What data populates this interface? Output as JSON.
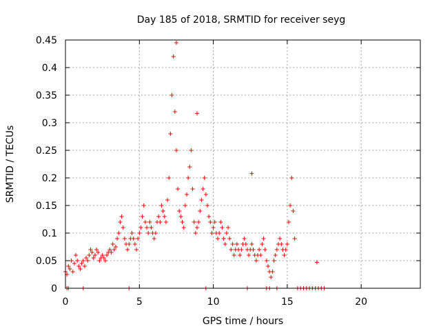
{
  "chart_data": {
    "type": "scatter",
    "title": "Day 185 of 2018, SRMTID for receiver seyg",
    "xlabel": "GPS time / hours",
    "ylabel": "SRMTID / TECUs",
    "xlim": [
      0,
      24
    ],
    "ylim": [
      0,
      0.45
    ],
    "xticks": [
      0,
      5,
      10,
      15,
      20
    ],
    "xtick_labels": [
      "0",
      "5",
      "10",
      "15",
      "20"
    ],
    "yticks": [
      0,
      0.05,
      0.1,
      0.15,
      0.2,
      0.25,
      0.3,
      0.35,
      0.4,
      0.45
    ],
    "ytick_labels": [
      "0",
      "0.05",
      "0.1",
      "0.15",
      "0.2",
      "0.25",
      "0.3",
      "0.35",
      "0.4",
      "0.45"
    ],
    "grid": true,
    "marker": "+",
    "color": "#ff0000",
    "series": [
      {
        "name": "SRMTID",
        "x": [
          0.0,
          0.1,
          0.2,
          0.3,
          0.4,
          0.5,
          0.6,
          0.7,
          0.8,
          0.9,
          1.0,
          1.1,
          1.2,
          1.3,
          1.4,
          1.5,
          1.6,
          1.7,
          1.8,
          1.9,
          2.0,
          2.1,
          2.2,
          2.3,
          2.4,
          2.5,
          2.6,
          2.7,
          2.8,
          2.9,
          3.0,
          3.1,
          3.2,
          3.3,
          3.4,
          3.5,
          3.6,
          3.7,
          3.8,
          3.9,
          4.0,
          4.1,
          4.2,
          4.3,
          4.4,
          4.5,
          4.6,
          4.7,
          4.8,
          4.9,
          5.0,
          5.1,
          5.2,
          5.3,
          5.4,
          5.5,
          5.6,
          5.7,
          5.8,
          5.9,
          6.0,
          6.1,
          6.2,
          6.3,
          6.4,
          6.5,
          6.6,
          6.7,
          6.8,
          6.9,
          7.0,
          7.1,
          7.2,
          7.3,
          7.4,
          7.5,
          7.6,
          7.7,
          7.8,
          7.9,
          8.0,
          8.1,
          8.2,
          8.3,
          8.4,
          8.5,
          8.6,
          8.7,
          8.8,
          8.9,
          9.0,
          9.1,
          9.2,
          9.3,
          9.4,
          9.5,
          9.6,
          9.7,
          9.8,
          9.9,
          10.0,
          10.1,
          10.2,
          10.3,
          10.4,
          10.5,
          10.6,
          10.7,
          10.8,
          10.9,
          11.0,
          11.1,
          11.2,
          11.3,
          11.4,
          11.5,
          11.6,
          11.7,
          11.8,
          11.9,
          12.0,
          12.1,
          12.2,
          12.3,
          12.4,
          12.5,
          12.6,
          12.7,
          12.8,
          12.9,
          13.0,
          13.1,
          13.2,
          13.3,
          13.4,
          13.5,
          13.6,
          13.7,
          13.8,
          13.9,
          14.0,
          14.1,
          14.2,
          14.3,
          14.4,
          14.5,
          14.6,
          14.7,
          14.8,
          14.9,
          15.0,
          15.1,
          15.2,
          15.3,
          15.4,
          15.5
        ],
        "y": [
          0.03,
          0.025,
          0.04,
          0.035,
          0.05,
          0.03,
          0.045,
          0.06,
          0.05,
          0.04,
          0.035,
          0.045,
          0.05,
          0.04,
          0.055,
          0.05,
          0.06,
          0.07,
          0.065,
          0.055,
          0.06,
          0.07,
          0.065,
          0.05,
          0.055,
          0.06,
          0.055,
          0.05,
          0.06,
          0.065,
          0.07,
          0.065,
          0.08,
          0.07,
          0.075,
          0.09,
          0.1,
          0.12,
          0.13,
          0.11,
          0.09,
          0.08,
          0.07,
          0.08,
          0.09,
          0.1,
          0.09,
          0.08,
          0.07,
          0.09,
          0.1,
          0.11,
          0.13,
          0.15,
          0.12,
          0.11,
          0.1,
          0.12,
          0.11,
          0.1,
          0.09,
          0.1,
          0.12,
          0.13,
          0.12,
          0.15,
          0.14,
          0.13,
          0.12,
          0.16,
          0.2,
          0.28,
          0.35,
          0.42,
          0.32,
          0.25,
          0.18,
          0.14,
          0.13,
          0.12,
          0.11,
          0.15,
          0.17,
          0.2,
          0.22,
          0.25,
          0.18,
          0.12,
          0.1,
          0.11,
          0.12,
          0.14,
          0.16,
          0.18,
          0.2,
          0.17,
          0.15,
          0.13,
          0.12,
          0.1,
          0.11,
          0.12,
          0.1,
          0.09,
          0.1,
          0.12,
          0.11,
          0.09,
          0.08,
          0.1,
          0.11,
          0.09,
          0.07,
          0.08,
          0.06,
          0.07,
          0.08,
          0.07,
          0.06,
          0.07,
          0.08,
          0.09,
          0.08,
          0.07,
          0.06,
          0.07,
          0.08,
          0.07,
          0.06,
          0.05,
          0.06,
          0.07,
          0.06,
          0.08,
          0.09,
          0.07,
          0.05,
          0.04,
          0.03,
          0.02,
          0.03,
          0.05,
          0.06,
          0.07,
          0.08,
          0.09,
          0.08,
          0.07,
          0.06,
          0.07,
          0.08,
          0.12,
          0.15,
          0.2,
          0.14,
          0.09
        ]
      }
    ],
    "zero_markers_x": [
      0.1,
      0.2,
      1.2,
      4.3,
      9.5,
      12.3,
      13.6,
      13.8,
      14.3,
      15.7,
      15.9,
      16.1,
      16.3,
      16.5,
      16.7,
      16.9,
      17.1,
      17.3,
      17.5
    ],
    "isolated_points": [
      {
        "x": 17.0,
        "y": 0.047
      },
      {
        "x": 7.5,
        "y": 0.445
      },
      {
        "x": 8.9,
        "y": 0.317
      },
      {
        "x": 12.6,
        "y": 0.208
      }
    ]
  }
}
